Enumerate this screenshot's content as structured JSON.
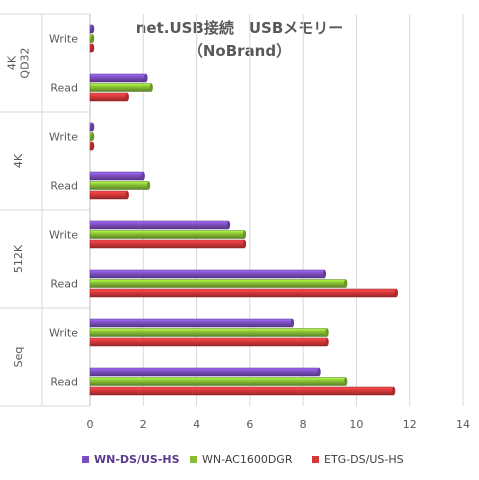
{
  "title": {
    "line1": "net.USB接続　USBメモリー",
    "line2": "（NoBrand）"
  },
  "chart_data": {
    "type": "bar",
    "orientation": "horizontal",
    "title": "net.USB接続　USBメモリー（NoBrand）",
    "groups": [
      {
        "name": "4K\nQD32",
        "categories": [
          "Write",
          "Read"
        ]
      },
      {
        "name": "4K",
        "categories": [
          "Write",
          "Read"
        ]
      },
      {
        "name": "512K",
        "categories": [
          "Write",
          "Read"
        ]
      },
      {
        "name": "Seq",
        "categories": [
          "Write",
          "Read"
        ]
      }
    ],
    "series": [
      {
        "name": "WN-DS/US-HS",
        "color": "#7b4fbf",
        "values": [
          [
            0.1,
            2.1
          ],
          [
            0.1,
            2.0
          ],
          [
            5.2,
            8.8
          ],
          [
            7.6,
            8.6
          ]
        ]
      },
      {
        "name": "WN-AC1600DGR",
        "color": "#86bd35",
        "values": [
          [
            0.1,
            2.3
          ],
          [
            0.1,
            2.2
          ],
          [
            5.8,
            9.6
          ],
          [
            8.9,
            9.6
          ]
        ]
      },
      {
        "name": "ETG-DS/US-HS",
        "color": "#d6383a",
        "values": [
          [
            0.1,
            1.4
          ],
          [
            0.1,
            1.4
          ],
          [
            5.8,
            11.5
          ],
          [
            8.9,
            11.4
          ]
        ]
      }
    ],
    "xlim": [
      0,
      14
    ],
    "xticks": [
      "0",
      "2",
      "4",
      "6",
      "8",
      "10",
      "12",
      "14"
    ],
    "grid": true,
    "legend_position": "bottom"
  }
}
